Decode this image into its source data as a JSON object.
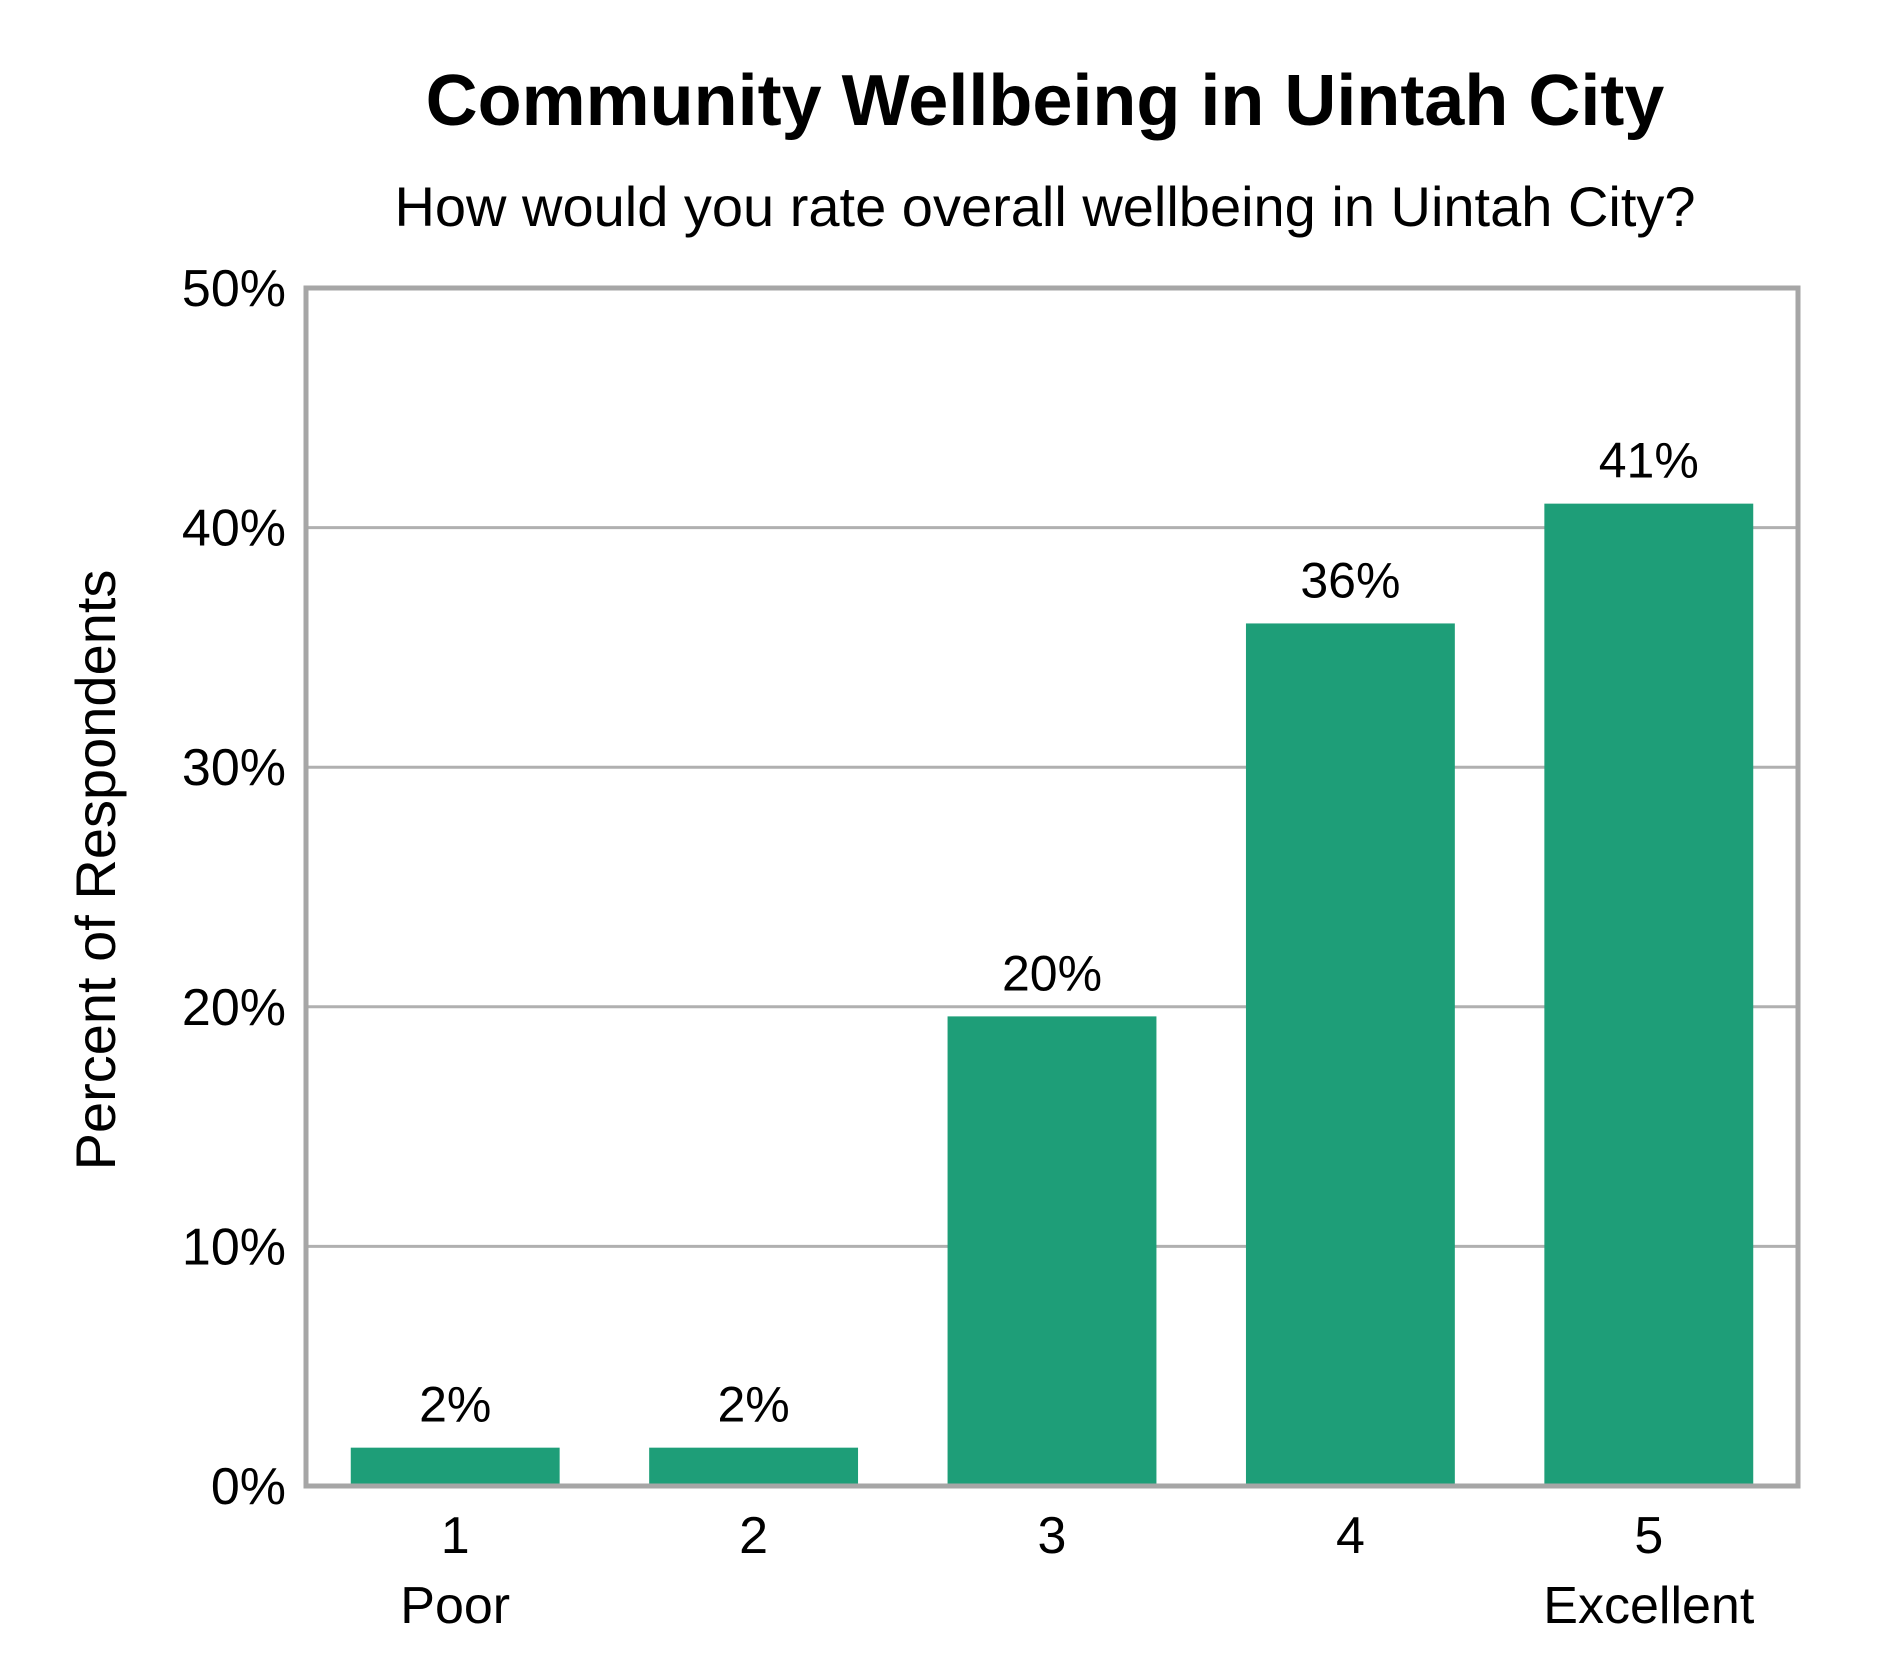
{
  "chart_data": {
    "type": "bar",
    "title": "Community Wellbeing in Uintah City",
    "subtitle": "How would you rate overall wellbeing in Uintah City?",
    "ylabel": "Percent of Respondents",
    "xlabel": "",
    "categories": [
      "1",
      "2",
      "3",
      "4",
      "5"
    ],
    "category_sublabels": [
      "Poor",
      "",
      "",
      "",
      "Excellent"
    ],
    "values": [
      1.6,
      1.6,
      19.6,
      36.0,
      41.0
    ],
    "data_labels": [
      "2%",
      "2%",
      "20%",
      "36%",
      "41%"
    ],
    "ylim": [
      0,
      50
    ],
    "yticks": [
      0,
      10,
      20,
      30,
      40,
      50
    ],
    "ytick_labels": [
      "0%",
      "10%",
      "20%",
      "30%",
      "40%",
      "50%"
    ],
    "grid": true,
    "bar_color": "#1e9e78",
    "grid_color": "#b0b0b0",
    "frame_color": "#a6a6a6"
  }
}
